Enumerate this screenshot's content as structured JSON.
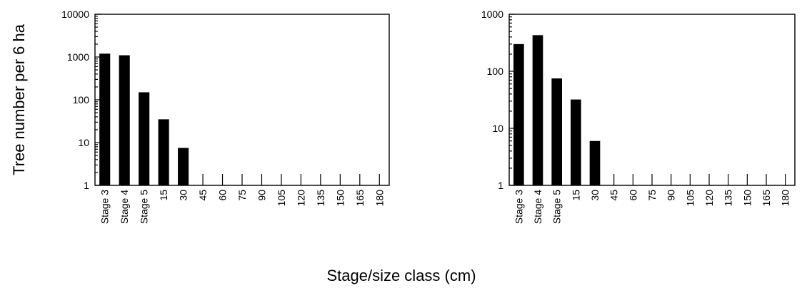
{
  "figure": {
    "ylabel": "Tree number per 6 ha",
    "xlabel": "Stage/size class (cm)"
  },
  "chart_data": [
    {
      "type": "bar",
      "scale": "log",
      "ylim": [
        1,
        10000
      ],
      "yticks": [
        "1",
        "10",
        "100",
        "1000",
        "10000"
      ],
      "categories": [
        "Stage 3",
        "Stage 4",
        "Stage 5",
        "15",
        "30",
        "45",
        "60",
        "75",
        "90",
        "105",
        "120",
        "135",
        "150",
        "165",
        "180"
      ],
      "values": [
        1200,
        1100,
        150,
        35,
        7.5,
        0,
        0,
        0,
        0,
        0,
        0,
        0,
        0,
        0,
        0
      ],
      "grid": false
    },
    {
      "type": "bar",
      "scale": "log",
      "ylim": [
        1,
        1000
      ],
      "yticks": [
        "1",
        "10",
        "100",
        "1000"
      ],
      "categories": [
        "Stage 3",
        "Stage 4",
        "Stage 5",
        "15",
        "30",
        "45",
        "60",
        "75",
        "90",
        "105",
        "120",
        "135",
        "150",
        "165",
        "180"
      ],
      "values": [
        300,
        430,
        75,
        32,
        6,
        0,
        0,
        0,
        0,
        0,
        0,
        0,
        0,
        0,
        0
      ],
      "grid": false
    }
  ]
}
